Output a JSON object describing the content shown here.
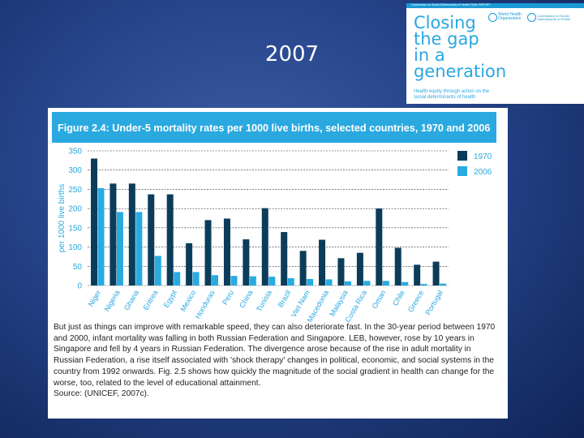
{
  "slide": {
    "title": "2007"
  },
  "cover": {
    "topbar_text": "Commission on Social Determinants of Health FINAL REPORT",
    "title_lines": [
      "Closing",
      "the gap",
      "in a",
      "generation"
    ],
    "subtitle": "Health equity through action on the social determinants of health",
    "logo_who": "World Health Organization",
    "logo_csdh": "Commission on Social Determinants of Health"
  },
  "figure": {
    "header": "Figure 2.4: Under-5 mortality rates per 1000 live births, selected countries, 1970 and 2006",
    "caption": "But just as things can improve with remarkable speed, they can also deteriorate fast. In the 30-year period between 1970 and 2000, infant mortality was falling in both Russian Federation and Singapore. LEB, however, rose by 10 years in Singapore and fell by 4 years in Russian Federation. The divergence arose because of the rise in adult mortality in Russian Federation, a rise itself associated with 'shock therapy' changes in political, economic, and social systems in the country from 1992 onwards. Fig. 2.5 shows how quickly the magnitude of the social gradient in health can change for the worse, too, related to the level of educational attainment.",
    "source": "Source: (UNICEF, 2007c)."
  },
  "chart_data": {
    "type": "bar",
    "title": "Under-5 mortality rates per 1000 live births, selected countries, 1970 and 2006",
    "ylabel": "per 1000 live births",
    "xlabel": "",
    "ylim": [
      0,
      350
    ],
    "yticks": [
      0,
      50,
      100,
      150,
      200,
      250,
      300,
      350
    ],
    "grid": true,
    "legend_position": "top-right",
    "categories": [
      "Niger",
      "Nigeria",
      "Ghana",
      "Eritrea",
      "Egypt",
      "Mexico",
      "Honduras",
      "Peru",
      "China",
      "Tunisia",
      "Brazil",
      "Viet Nam",
      "The former Yugoslav Republic of Macedonia",
      "Malaysia",
      "Costa Rica",
      "Oman",
      "Chile",
      "Greece",
      "Portugal"
    ],
    "series": [
      {
        "name": "1970",
        "color": "#0b3d5b",
        "values": [
          330,
          265,
          265,
          237,
          237,
          110,
          170,
          174,
          120,
          201,
          139,
          90,
          119,
          71,
          85,
          200,
          98,
          54,
          62
        ]
      },
      {
        "name": "2006",
        "color": "#29aae1",
        "values": [
          253,
          191,
          191,
          77,
          35,
          35,
          27,
          25,
          24,
          23,
          19,
          17,
          16,
          11,
          12,
          12,
          9,
          4,
          5
        ]
      }
    ]
  }
}
